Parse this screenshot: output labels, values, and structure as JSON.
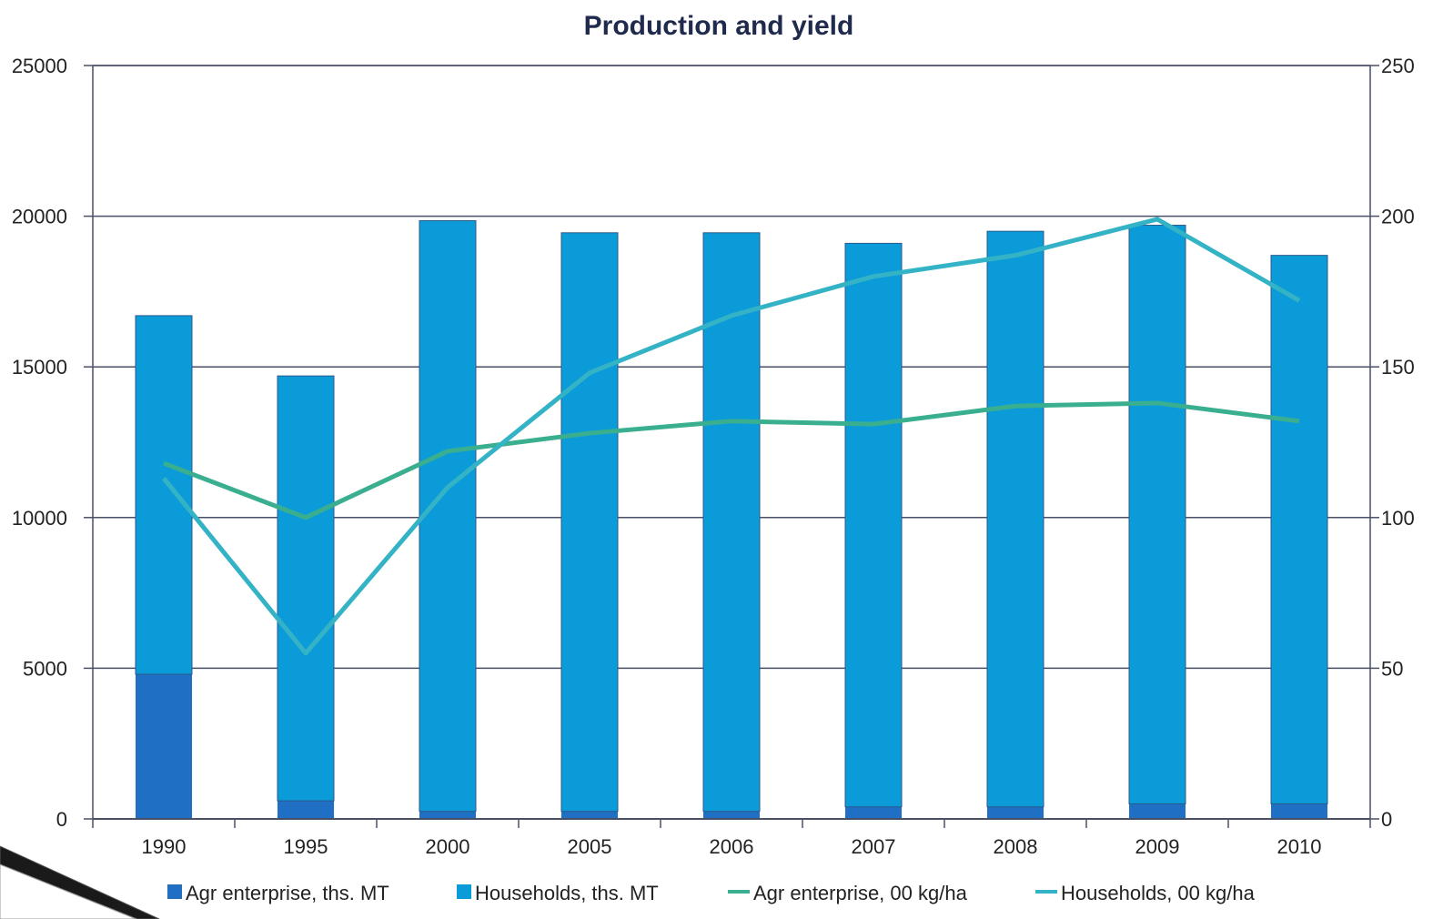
{
  "chart_data": {
    "type": "bar",
    "title": "Production and yield",
    "categories": [
      "1990",
      "1995",
      "2000",
      "2005",
      "2006",
      "2007",
      "2008",
      "2009",
      "2010"
    ],
    "y_left": {
      "min": 0,
      "max": 25000,
      "ticks": [
        0,
        5000,
        10000,
        15000,
        20000,
        25000
      ]
    },
    "y_right": {
      "min": 0,
      "max": 250,
      "ticks": [
        0,
        50,
        100,
        150,
        200,
        250
      ]
    },
    "grid": true,
    "legend_position": "bottom",
    "stacked_bars": [
      {
        "name": "Agr enterprise, ths. MT",
        "axis": "left",
        "color": "#1f6fc5",
        "values": [
          4800,
          600,
          250,
          250,
          250,
          400,
          400,
          500,
          500
        ]
      },
      {
        "name": "Households, ths. MT",
        "axis": "left",
        "color": "#0b9bd8",
        "values": [
          11900,
          14100,
          19600,
          19200,
          19200,
          18700,
          19100,
          19200,
          18200
        ]
      }
    ],
    "lines": [
      {
        "name": "Agr enterprise, 00 kg/ha",
        "axis": "right",
        "color": "#3aaf8f",
        "values": [
          118,
          100,
          122,
          128,
          132,
          131,
          137,
          138,
          132
        ]
      },
      {
        "name": "Households, 00 kg/ha",
        "axis": "right",
        "color": "#35b3c6",
        "values": [
          113,
          55,
          110,
          148,
          167,
          180,
          187,
          199,
          172
        ]
      }
    ]
  }
}
